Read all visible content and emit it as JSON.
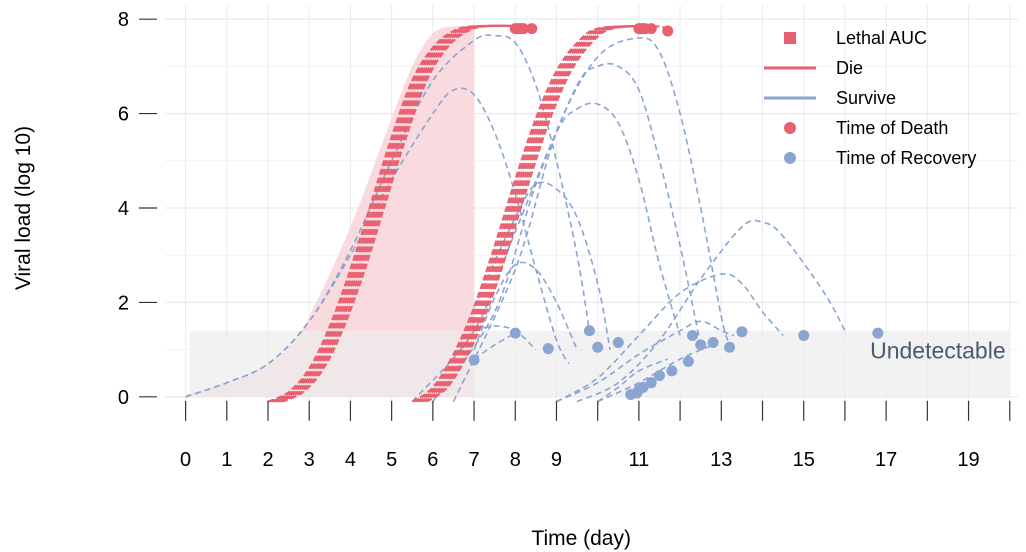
{
  "chart_data": {
    "type": "line",
    "xlabel": "Time (day)",
    "ylabel": "Viral load (log 10)",
    "xlim": [
      -0.5,
      20.2
    ],
    "ylim": [
      -0.3,
      8.3
    ],
    "x_ticks": [
      0,
      1,
      2,
      3,
      4,
      5,
      6,
      7,
      8,
      9,
      11,
      13,
      15,
      17,
      19
    ],
    "x_tick_marks": [
      0,
      1,
      2,
      3,
      4,
      5,
      6,
      7,
      8,
      9,
      10,
      11,
      12,
      13,
      14,
      15,
      16,
      17,
      18,
      19,
      20
    ],
    "y_ticks": [
      0,
      2,
      4,
      6,
      8
    ],
    "grid": true,
    "legend_position": "top-right",
    "colors": {
      "die": "#e8606f",
      "survive": "#8aa5d1",
      "auc_fill": "#f9d8dc",
      "undetectable_fill": "#ececec"
    },
    "lethal_auc_region": {
      "x_end": 7,
      "upper": [
        [
          0,
          0.05
        ],
        [
          1,
          0.3
        ],
        [
          2,
          0.7
        ],
        [
          2.5,
          1.05
        ],
        [
          3,
          1.7
        ],
        [
          4,
          3.6
        ],
        [
          5,
          5.9
        ],
        [
          5.5,
          7.0
        ],
        [
          6,
          7.7
        ],
        [
          6.5,
          7.85
        ],
        [
          7,
          7.85
        ]
      ]
    },
    "undetectable_region": {
      "x": [
        0.1,
        20
      ],
      "y": [
        0,
        1.4
      ]
    },
    "annotation": "Undetectable",
    "legend": [
      {
        "label": "Lethal AUC",
        "symbol": "square",
        "color": "#e8606f"
      },
      {
        "label": "Die",
        "symbol": "line",
        "color": "#e8606f"
      },
      {
        "label": "Survive",
        "symbol": "line",
        "color": "#8aa5d1"
      },
      {
        "label": "Time of Death",
        "symbol": "dot",
        "color": "#e8606f"
      },
      {
        "label": "Time of Recovery",
        "symbol": "dot",
        "color": "#8aa5d1"
      }
    ],
    "die_curve_groups": [
      {
        "offsets": [
          0,
          0.05,
          0.1,
          0.15,
          0.2,
          0.25,
          0.3,
          0.35
        ],
        "base_points": [
          [
            2,
            -0.1
          ],
          [
            2.5,
            0.1
          ],
          [
            3,
            0.6
          ],
          [
            3.5,
            1.5
          ],
          [
            4,
            2.7
          ],
          [
            4.5,
            4.1
          ],
          [
            5,
            5.5
          ],
          [
            5.5,
            6.7
          ],
          [
            6,
            7.4
          ],
          [
            6.5,
            7.75
          ],
          [
            7,
            7.85
          ],
          [
            8,
            7.85
          ]
        ],
        "end_x": [
          8.0,
          8.05,
          8.1,
          8.15,
          8.2,
          8.25,
          8.3,
          8.4
        ]
      },
      {
        "offsets": [
          0,
          0.05,
          0.1,
          0.15,
          0.2,
          0.25,
          0.3,
          0.35
        ],
        "base_points": [
          [
            5.5,
            -0.1
          ],
          [
            6,
            0.2
          ],
          [
            6.5,
            0.9
          ],
          [
            7,
            1.9
          ],
          [
            7.5,
            3.2
          ],
          [
            8,
            4.6
          ],
          [
            8.5,
            5.9
          ],
          [
            9,
            6.9
          ],
          [
            9.5,
            7.5
          ],
          [
            10,
            7.8
          ],
          [
            11,
            7.85
          ]
        ],
        "end_x": [
          11.0,
          11.05,
          11.1,
          11.15,
          11.2,
          11.3,
          11.35,
          11.7
        ]
      }
    ],
    "die_end_y": 7.8,
    "survive_curves": [
      [
        [
          0,
          0
        ],
        [
          1,
          0.3
        ],
        [
          2,
          0.7
        ],
        [
          3,
          1.6
        ],
        [
          4,
          3.0
        ],
        [
          5,
          4.6
        ],
        [
          6,
          6.0
        ],
        [
          6.5,
          6.5
        ],
        [
          7,
          6.4
        ],
        [
          7.5,
          5.6
        ],
        [
          8,
          4.3
        ],
        [
          8.5,
          2.7
        ],
        [
          9,
          1.2
        ],
        [
          9.3,
          0.7
        ]
      ],
      [
        [
          0,
          0
        ],
        [
          1,
          0.3
        ],
        [
          2,
          0.7
        ],
        [
          3,
          1.6
        ],
        [
          4,
          3.1
        ],
        [
          5,
          5.0
        ],
        [
          6,
          6.7
        ],
        [
          7,
          7.55
        ],
        [
          7.5,
          7.65
        ],
        [
          8,
          7.5
        ],
        [
          8.5,
          6.6
        ],
        [
          9,
          5.0
        ],
        [
          9.5,
          3.0
        ],
        [
          9.8,
          1.4
        ]
      ],
      [
        [
          7,
          1.9
        ],
        [
          8,
          3.8
        ],
        [
          8.5,
          4.5
        ],
        [
          9,
          4.4
        ],
        [
          9.5,
          3.8
        ],
        [
          10,
          2.4
        ],
        [
          10.3,
          1.0
        ]
      ],
      [
        [
          7,
          1.0
        ],
        [
          7.5,
          2.1
        ],
        [
          8,
          2.8
        ],
        [
          8.5,
          2.7
        ],
        [
          9,
          2.0
        ],
        [
          9.5,
          1.0
        ]
      ],
      [
        [
          7,
          1.4
        ],
        [
          7.5,
          1.5
        ],
        [
          8,
          1.4
        ],
        [
          8.5,
          1.0
        ]
      ],
      [
        [
          7,
          0.8
        ],
        [
          7.5,
          1.1
        ],
        [
          8,
          1.35
        ]
      ],
      [
        [
          5.5,
          -0.1
        ],
        [
          7,
          1.4
        ],
        [
          8,
          3.5
        ],
        [
          9,
          5.6
        ],
        [
          9.5,
          6.1
        ],
        [
          10,
          6.2
        ],
        [
          10.5,
          5.8
        ],
        [
          11,
          4.6
        ],
        [
          11.5,
          2.8
        ],
        [
          12,
          1.3
        ]
      ],
      [
        [
          6,
          -0.1
        ],
        [
          7.5,
          1.8
        ],
        [
          8.5,
          4.5
        ],
        [
          9.5,
          6.6
        ],
        [
          10,
          7.0
        ],
        [
          10.5,
          7.0
        ],
        [
          11,
          6.5
        ],
        [
          11.5,
          5.0
        ],
        [
          12,
          3.2
        ],
        [
          12.5,
          1.1
        ]
      ],
      [
        [
          6.5,
          -0.1
        ],
        [
          8,
          2.7
        ],
        [
          9,
          5.6
        ],
        [
          10,
          7.2
        ],
        [
          11,
          7.6
        ],
        [
          11.5,
          7.3
        ],
        [
          12,
          6.0
        ],
        [
          12.5,
          4.0
        ],
        [
          13,
          1.7
        ],
        [
          13.2,
          1.1
        ]
      ],
      [
        [
          9,
          -0.1
        ],
        [
          10,
          0.4
        ],
        [
          11,
          1.3
        ],
        [
          12,
          2.2
        ],
        [
          13,
          2.6
        ],
        [
          13.5,
          2.4
        ],
        [
          14,
          1.8
        ],
        [
          14.5,
          1.3
        ]
      ],
      [
        [
          9.5,
          -0.1
        ],
        [
          10.5,
          0.3
        ],
        [
          11.5,
          1.2
        ],
        [
          12.5,
          2.5
        ],
        [
          13.5,
          3.6
        ],
        [
          14,
          3.7
        ],
        [
          14.5,
          3.4
        ],
        [
          15.5,
          2.2
        ],
        [
          16,
          1.4
        ]
      ],
      [
        [
          9,
          -0.1
        ],
        [
          10,
          0.3
        ],
        [
          11,
          0.9
        ],
        [
          12,
          1.4
        ],
        [
          12.5,
          1.6
        ],
        [
          13,
          1.4
        ],
        [
          13.3,
          1.3
        ]
      ],
      [
        [
          10,
          -0.1
        ],
        [
          11,
          0.3
        ],
        [
          12,
          0.8
        ],
        [
          12.8,
          1.1
        ]
      ],
      [
        [
          10,
          -0.1
        ],
        [
          10.5,
          0.2
        ],
        [
          11,
          0.55
        ],
        [
          11.7,
          0.8
        ]
      ]
    ],
    "death_points": [
      [
        8.0,
        7.8
      ],
      [
        8.05,
        7.8
      ],
      [
        8.1,
        7.8
      ],
      [
        8.15,
        7.8
      ],
      [
        8.2,
        7.8
      ],
      [
        8.4,
        7.8
      ],
      [
        11.0,
        7.8
      ],
      [
        11.05,
        7.8
      ],
      [
        11.1,
        7.8
      ],
      [
        11.15,
        7.8
      ],
      [
        11.3,
        7.8
      ],
      [
        11.7,
        7.75
      ]
    ],
    "recovery_points": [
      [
        7.0,
        0.78
      ],
      [
        8.0,
        1.35
      ],
      [
        8.8,
        1.02
      ],
      [
        9.8,
        1.4
      ],
      [
        10.0,
        1.05
      ],
      [
        10.5,
        1.15
      ],
      [
        11.0,
        0.15
      ],
      [
        11.1,
        0.2
      ],
      [
        11.3,
        0.3
      ],
      [
        11.5,
        0.45
      ],
      [
        11.8,
        0.55
      ],
      [
        12.2,
        0.75
      ],
      [
        12.3,
        1.3
      ],
      [
        12.5,
        1.1
      ],
      [
        12.8,
        1.15
      ],
      [
        13.2,
        1.05
      ],
      [
        13.5,
        1.38
      ],
      [
        15.0,
        1.3
      ],
      [
        16.8,
        1.35
      ],
      [
        10.8,
        0.05
      ],
      [
        10.95,
        0.08
      ]
    ]
  }
}
